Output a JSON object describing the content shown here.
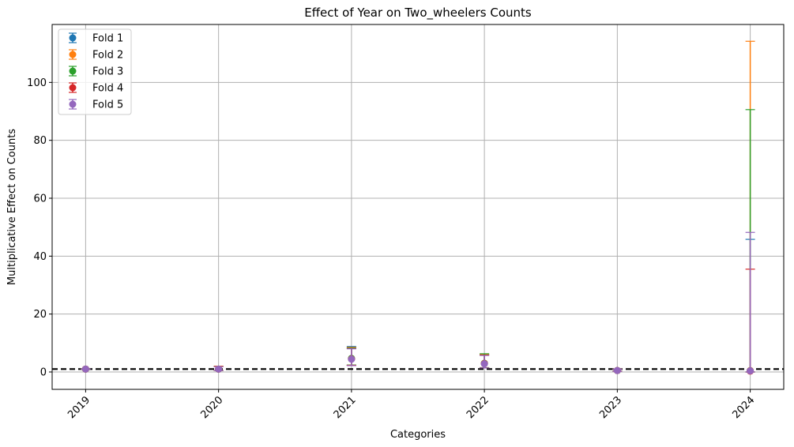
{
  "chart_data": {
    "type": "scatter",
    "title": "Effect of Year on Two_wheelers Counts",
    "xlabel": "Categories",
    "ylabel": "Multiplicative Effect on Counts",
    "categories": [
      "2019",
      "2020",
      "2021",
      "2022",
      "2023",
      "2024"
    ],
    "ylim": [
      -6,
      120
    ],
    "yticks": [
      0,
      20,
      40,
      60,
      80,
      100
    ],
    "grid": true,
    "legend_position": "top-left",
    "reference_line": {
      "y": 1,
      "style": "dashed",
      "color": "#000000"
    },
    "series": [
      {
        "name": "Fold 1",
        "color": "#1f77b4",
        "values": [
          1.0,
          1.0,
          4.5,
          2.9,
          0.5,
          0.4
        ],
        "lower": [
          1.0,
          0.5,
          2.3,
          1.4,
          0.2,
          0.0
        ],
        "upper": [
          1.0,
          1.9,
          8.8,
          6.1,
          1.0,
          45.8
        ]
      },
      {
        "name": "Fold 2",
        "color": "#ff7f0e",
        "values": [
          1.0,
          1.0,
          4.6,
          3.0,
          0.5,
          0.5
        ],
        "lower": [
          1.0,
          0.5,
          2.4,
          1.5,
          0.2,
          0.0
        ],
        "upper": [
          1.0,
          2.0,
          8.5,
          6.0,
          1.0,
          114.2
        ]
      },
      {
        "name": "Fold 3",
        "color": "#2ca02c",
        "values": [
          1.0,
          1.0,
          4.7,
          3.0,
          0.5,
          0.4
        ],
        "lower": [
          1.0,
          0.5,
          2.4,
          1.5,
          0.2,
          0.0
        ],
        "upper": [
          1.0,
          1.9,
          8.3,
          6.3,
          1.0,
          90.6
        ]
      },
      {
        "name": "Fold 4",
        "color": "#d62728",
        "values": [
          1.0,
          1.0,
          4.5,
          2.9,
          0.5,
          0.3
        ],
        "lower": [
          1.0,
          0.5,
          2.3,
          1.4,
          0.2,
          0.0
        ],
        "upper": [
          1.0,
          1.9,
          8.1,
          5.8,
          1.0,
          35.5
        ]
      },
      {
        "name": "Fold 5",
        "color": "#9467bd",
        "values": [
          1.0,
          1.0,
          4.4,
          2.8,
          0.5,
          0.4
        ],
        "lower": [
          1.0,
          0.5,
          2.2,
          1.4,
          0.2,
          0.0
        ],
        "upper": [
          1.0,
          1.8,
          8.0,
          5.7,
          1.0,
          48.2
        ]
      }
    ]
  }
}
